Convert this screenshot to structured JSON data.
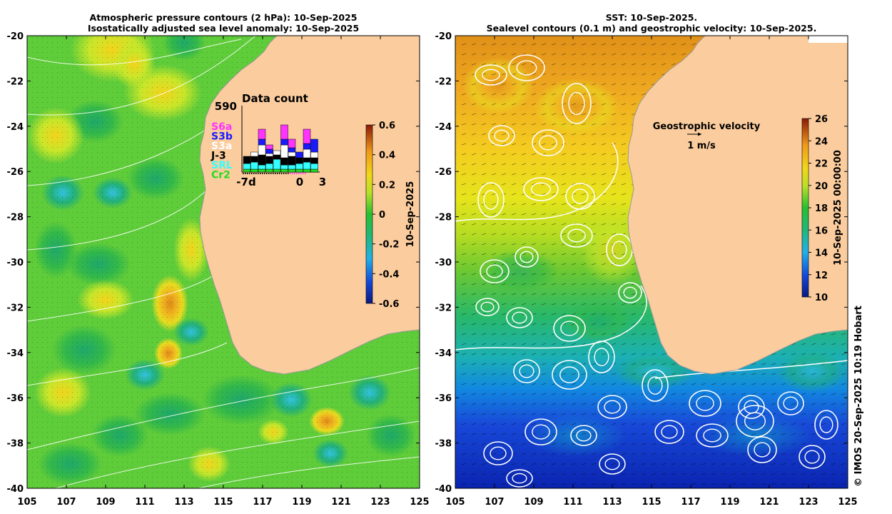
{
  "left_panel": {
    "title_line1": "Atmospheric pressure contours (2 hPa): 10-Sep-2025",
    "title_line2": "Isostatically adjusted sea level anomaly: 10-Sep-2025",
    "colorbar": {
      "label": "10-Sep-2025",
      "ticks": [
        "0.6",
        "0.4",
        "0.2",
        "0",
        "-0.2",
        "-0.4",
        "-0.6"
      ],
      "range": [
        -0.6,
        0.6
      ]
    },
    "data_count": {
      "title": "Data count",
      "max_label": "590",
      "x_labels": [
        "-7d",
        "0",
        "3"
      ],
      "missions": [
        {
          "name": "S6a",
          "color": "#ff33ff"
        },
        {
          "name": "S3b",
          "color": "#1a1aff"
        },
        {
          "name": "S3a",
          "color": "#ffffff"
        },
        {
          "name": "J-3",
          "color": "#000000"
        },
        {
          "name": "SRL",
          "color": "#33ffff"
        },
        {
          "name": "Cr2",
          "color": "#22dd22"
        }
      ]
    }
  },
  "right_panel": {
    "title_line1": "SST: 10-Sep-2025.",
    "title_line2": "Sealevel contours (0.1 m) and geostrophic velocity: 10-Sep-2025.",
    "velocity_legend": {
      "title": "Geostrophic velocity",
      "scale": "1 m/s"
    },
    "colorbar": {
      "label": "10-Sep-2025 00:00:00",
      "ticks": [
        "26",
        "24",
        "22",
        "20",
        "18",
        "16",
        "14",
        "12",
        "10"
      ],
      "range": [
        10,
        26
      ]
    }
  },
  "axes": {
    "x_ticks": [
      "105",
      "107",
      "109",
      "111",
      "113",
      "115",
      "117",
      "119",
      "121",
      "123",
      "125"
    ],
    "y_ticks": [
      "-20",
      "-22",
      "-24",
      "-26",
      "-28",
      "-30",
      "-32",
      "-34",
      "-36",
      "-38",
      "-40"
    ]
  },
  "credit": "© IMOS 20-Sep-2025 10:19 Hobart",
  "colors": {
    "land": "#fbcc9d",
    "coast": "#9a9a9a"
  }
}
